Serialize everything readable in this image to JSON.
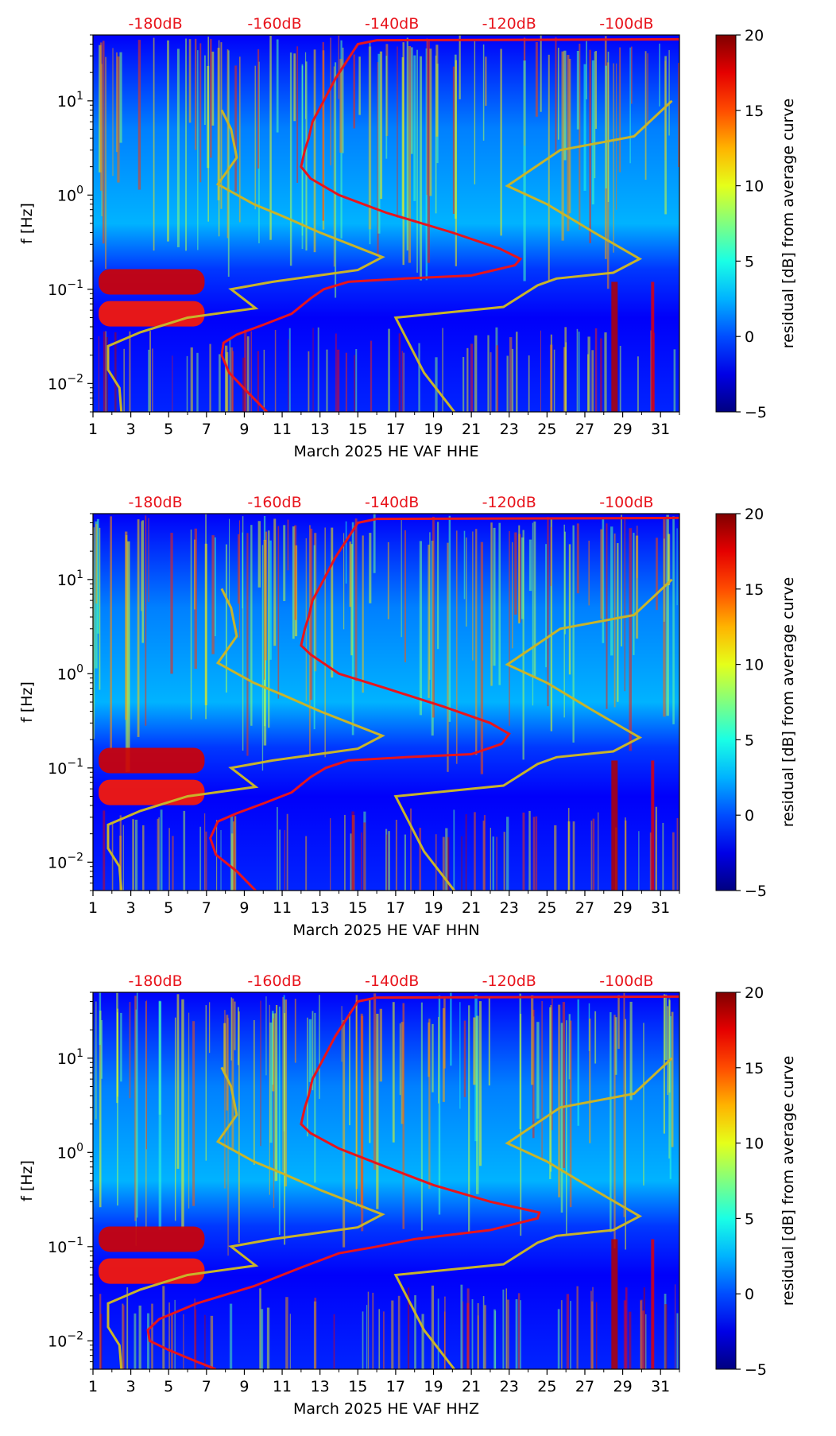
{
  "chart_data": [
    {
      "type": "heatmap",
      "xlabel": "March 2025 HE VAF  HHE",
      "ylabel": "f [Hz]",
      "x_ticks": [
        "1",
        "3",
        "5",
        "7",
        "9",
        "11",
        "13",
        "15",
        "17",
        "19",
        "21",
        "23",
        "25",
        "27",
        "29",
        "31"
      ],
      "xlim": [
        1,
        32
      ],
      "ylim": [
        0.005,
        50
      ],
      "y_ticks": [
        {
          "value": 0.01,
          "base": "10",
          "exp": "−2"
        },
        {
          "value": 0.1,
          "base": "10",
          "exp": "−1"
        },
        {
          "value": 1,
          "base": "10",
          "exp": "0"
        },
        {
          "value": 10,
          "base": "10",
          "exp": "1"
        }
      ],
      "top_labels": [
        "-180dB",
        "-160dB",
        "-140dB",
        "-120dB",
        "-100dB"
      ],
      "colorbar": {
        "label": "residual [dB] from average curve",
        "ticks": [
          "20",
          "15",
          "10",
          "5",
          "0",
          "−5"
        ],
        "range": [
          -5,
          20
        ]
      },
      "red_curve": [
        [
          10.2,
          0.005
        ],
        [
          9.2,
          0.008
        ],
        [
          8.2,
          0.013
        ],
        [
          7.8,
          0.02
        ],
        [
          7.9,
          0.027
        ],
        [
          8.6,
          0.033
        ],
        [
          10,
          0.042
        ],
        [
          11.5,
          0.055
        ],
        [
          12.5,
          0.08
        ],
        [
          13.2,
          0.1
        ],
        [
          14.5,
          0.12
        ],
        [
          17.5,
          0.13
        ],
        [
          21,
          0.14
        ],
        [
          23.3,
          0.18
        ],
        [
          23.6,
          0.21
        ],
        [
          22.5,
          0.27
        ],
        [
          20,
          0.4
        ],
        [
          16.5,
          0.65
        ],
        [
          14,
          1
        ],
        [
          12.5,
          1.5
        ],
        [
          12,
          2
        ],
        [
          12.2,
          3
        ],
        [
          12.4,
          4
        ],
        [
          12.6,
          6
        ],
        [
          13.2,
          10
        ],
        [
          13.8,
          17
        ],
        [
          14.5,
          28
        ],
        [
          15,
          40
        ],
        [
          16,
          44
        ],
        [
          32,
          45
        ]
      ],
      "yellow_curve_left": [
        [
          2.5,
          0.005
        ],
        [
          2.4,
          0.009
        ],
        [
          1.8,
          0.014
        ],
        [
          1.8,
          0.025
        ],
        [
          3.5,
          0.035
        ],
        [
          6,
          0.05
        ],
        [
          9.6,
          0.063
        ],
        [
          8.3,
          0.1
        ],
        [
          10.5,
          0.12
        ],
        [
          15,
          0.16
        ],
        [
          16.3,
          0.22
        ],
        [
          13,
          0.4
        ],
        [
          11,
          0.6
        ],
        [
          9.5,
          0.8
        ],
        [
          7.6,
          1.3
        ],
        [
          8.6,
          2.5
        ],
        [
          8.3,
          5
        ],
        [
          7.8,
          8
        ]
      ],
      "yellow_curve_right": [
        [
          20.1,
          0.005
        ],
        [
          18.5,
          0.013
        ],
        [
          17,
          0.05
        ],
        [
          22.7,
          0.065
        ],
        [
          24.5,
          0.11
        ],
        [
          25.5,
          0.13
        ],
        [
          28.5,
          0.15
        ],
        [
          29.9,
          0.21
        ],
        [
          27.5,
          0.4
        ],
        [
          25,
          0.8
        ],
        [
          22.9,
          1.25
        ],
        [
          25.7,
          3
        ],
        [
          29.6,
          4.2
        ],
        [
          31.6,
          10
        ]
      ]
    },
    {
      "type": "heatmap",
      "xlabel": "March 2025 HE VAF  HHN",
      "ylabel": "f [Hz]",
      "x_ticks": [
        "1",
        "3",
        "5",
        "7",
        "9",
        "11",
        "13",
        "15",
        "17",
        "19",
        "21",
        "23",
        "25",
        "27",
        "29",
        "31"
      ],
      "xlim": [
        1,
        32
      ],
      "ylim": [
        0.005,
        50
      ],
      "y_ticks": [
        {
          "value": 0.01,
          "base": "10",
          "exp": "−2"
        },
        {
          "value": 0.1,
          "base": "10",
          "exp": "−1"
        },
        {
          "value": 1,
          "base": "10",
          "exp": "0"
        },
        {
          "value": 10,
          "base": "10",
          "exp": "1"
        }
      ],
      "top_labels": [
        "-180dB",
        "-160dB",
        "-140dB",
        "-120dB",
        "-100dB"
      ],
      "colorbar": {
        "label": "residual [dB] from average curve",
        "ticks": [
          "20",
          "15",
          "10",
          "5",
          "0",
          "−5"
        ],
        "range": [
          -5,
          20
        ]
      },
      "red_curve": [
        [
          9.6,
          0.005
        ],
        [
          8.6,
          0.008
        ],
        [
          7.5,
          0.012
        ],
        [
          7.2,
          0.018
        ],
        [
          7.6,
          0.027
        ],
        [
          8.6,
          0.033
        ],
        [
          10,
          0.042
        ],
        [
          11.5,
          0.055
        ],
        [
          12.5,
          0.08
        ],
        [
          13.3,
          0.1
        ],
        [
          14.5,
          0.12
        ],
        [
          17.5,
          0.13
        ],
        [
          21,
          0.14
        ],
        [
          22.6,
          0.18
        ],
        [
          23,
          0.23
        ],
        [
          22,
          0.3
        ],
        [
          19.5,
          0.45
        ],
        [
          16.5,
          0.7
        ],
        [
          14,
          1
        ],
        [
          12.5,
          1.6
        ],
        [
          12,
          2
        ],
        [
          12.2,
          3
        ],
        [
          12.4,
          4
        ],
        [
          12.6,
          6
        ],
        [
          13.2,
          10
        ],
        [
          13.8,
          17
        ],
        [
          14.5,
          28
        ],
        [
          15,
          40
        ],
        [
          16,
          44
        ],
        [
          32,
          45
        ]
      ],
      "yellow_curve_left": [
        [
          2.5,
          0.005
        ],
        [
          2.4,
          0.009
        ],
        [
          1.8,
          0.014
        ],
        [
          1.8,
          0.025
        ],
        [
          3.5,
          0.035
        ],
        [
          6,
          0.05
        ],
        [
          9.6,
          0.063
        ],
        [
          8.3,
          0.1
        ],
        [
          10.5,
          0.12
        ],
        [
          15,
          0.16
        ],
        [
          16.3,
          0.22
        ],
        [
          13,
          0.4
        ],
        [
          11,
          0.6
        ],
        [
          9.5,
          0.8
        ],
        [
          7.6,
          1.3
        ],
        [
          8.6,
          2.5
        ],
        [
          8.3,
          5
        ],
        [
          7.8,
          8
        ]
      ],
      "yellow_curve_right": [
        [
          20.1,
          0.005
        ],
        [
          18.5,
          0.013
        ],
        [
          17,
          0.05
        ],
        [
          22.7,
          0.065
        ],
        [
          24.5,
          0.11
        ],
        [
          25.5,
          0.13
        ],
        [
          28.5,
          0.15
        ],
        [
          29.9,
          0.21
        ],
        [
          27.5,
          0.4
        ],
        [
          25,
          0.8
        ],
        [
          22.9,
          1.25
        ],
        [
          25.7,
          3
        ],
        [
          29.6,
          4.2
        ],
        [
          31.6,
          10
        ]
      ]
    },
    {
      "type": "heatmap",
      "xlabel": "March 2025 HE VAF  HHZ",
      "ylabel": "f [Hz]",
      "x_ticks": [
        "1",
        "3",
        "5",
        "7",
        "9",
        "11",
        "13",
        "15",
        "17",
        "19",
        "21",
        "23",
        "25",
        "27",
        "29",
        "31"
      ],
      "xlim": [
        1,
        32
      ],
      "ylim": [
        0.005,
        50
      ],
      "y_ticks": [
        {
          "value": 0.01,
          "base": "10",
          "exp": "−2"
        },
        {
          "value": 0.1,
          "base": "10",
          "exp": "−1"
        },
        {
          "value": 1,
          "base": "10",
          "exp": "0"
        },
        {
          "value": 10,
          "base": "10",
          "exp": "1"
        }
      ],
      "top_labels": [
        "-180dB",
        "-160dB",
        "-140dB",
        "-120dB",
        "-100dB"
      ],
      "colorbar": {
        "label": "residual [dB] from average curve",
        "ticks": [
          "20",
          "15",
          "10",
          "5",
          "0",
          "−5"
        ],
        "range": [
          -5,
          20
        ]
      },
      "red_curve": [
        [
          7.5,
          0.005
        ],
        [
          6.5,
          0.006
        ],
        [
          5,
          0.008
        ],
        [
          4,
          0.01
        ],
        [
          3.9,
          0.013
        ],
        [
          4.5,
          0.017
        ],
        [
          6.5,
          0.025
        ],
        [
          9.5,
          0.038
        ],
        [
          12,
          0.06
        ],
        [
          14,
          0.085
        ],
        [
          16,
          0.1
        ],
        [
          18,
          0.12
        ],
        [
          22,
          0.15
        ],
        [
          24.5,
          0.2
        ],
        [
          24.6,
          0.23
        ],
        [
          22,
          0.3
        ],
        [
          19,
          0.45
        ],
        [
          16.5,
          0.7
        ],
        [
          14,
          1.1
        ],
        [
          12.5,
          1.6
        ],
        [
          12,
          2
        ],
        [
          12.2,
          3
        ],
        [
          12.4,
          4
        ],
        [
          12.6,
          6
        ],
        [
          13.2,
          10
        ],
        [
          13.8,
          17
        ],
        [
          14.5,
          28
        ],
        [
          15,
          40
        ],
        [
          16,
          44
        ],
        [
          32,
          45
        ]
      ],
      "yellow_curve_left": [
        [
          2.5,
          0.005
        ],
        [
          2.4,
          0.009
        ],
        [
          1.8,
          0.014
        ],
        [
          1.8,
          0.025
        ],
        [
          3.5,
          0.035
        ],
        [
          6,
          0.05
        ],
        [
          9.6,
          0.063
        ],
        [
          8.3,
          0.1
        ],
        [
          10.5,
          0.12
        ],
        [
          15,
          0.16
        ],
        [
          16.3,
          0.22
        ],
        [
          13,
          0.4
        ],
        [
          11,
          0.6
        ],
        [
          9.5,
          0.8
        ],
        [
          7.6,
          1.3
        ],
        [
          8.6,
          2.5
        ],
        [
          8.3,
          5
        ],
        [
          7.8,
          8
        ]
      ],
      "yellow_curve_right": [
        [
          20.1,
          0.005
        ],
        [
          18.5,
          0.013
        ],
        [
          17,
          0.05
        ],
        [
          22.7,
          0.065
        ],
        [
          24.5,
          0.11
        ],
        [
          25.5,
          0.13
        ],
        [
          28.5,
          0.15
        ],
        [
          29.9,
          0.21
        ],
        [
          27.5,
          0.4
        ],
        [
          25,
          0.8
        ],
        [
          22.9,
          1.25
        ],
        [
          25.7,
          3
        ],
        [
          29.6,
          4.2
        ],
        [
          31.6,
          10
        ]
      ]
    }
  ],
  "colors": {
    "red_curve": "#e8141c",
    "yellow_curve": "#c8b42a",
    "db_label": "#e8141c"
  }
}
